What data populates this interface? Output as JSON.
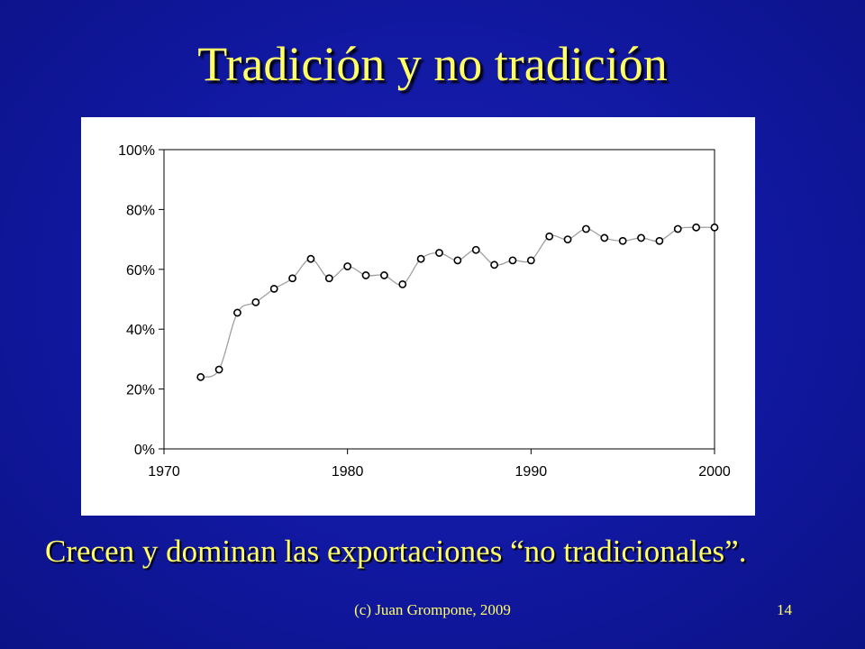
{
  "slide": {
    "title": "Tradición y no tradición",
    "caption": "Crecen y dominan las exportaciones “no tradicionales”.",
    "author": "(c) Juan Grompone, 2009",
    "page_number": "14"
  },
  "colors": {
    "background": "#1118a0",
    "text": "#ffff66",
    "line": "#a0a0a0",
    "marker": "#000000"
  },
  "chart_data": {
    "type": "line",
    "title": "",
    "xlabel": "",
    "ylabel": "",
    "xlim": [
      1970,
      2000
    ],
    "ylim": [
      0,
      100
    ],
    "grid": false,
    "legend": "none",
    "x_ticks": [
      1970,
      1980,
      1990,
      2000
    ],
    "x_tick_labels": [
      "1970",
      "1980",
      "1990",
      "2000"
    ],
    "y_ticks": [
      0,
      20,
      40,
      60,
      80,
      100
    ],
    "y_tick_labels": [
      "0%",
      "20%",
      "40%",
      "60%",
      "80%",
      "100%"
    ],
    "series": [
      {
        "x": [
          1972,
          1973,
          1974,
          1975,
          1976,
          1977,
          1978,
          1979,
          1980,
          1981,
          1982,
          1983,
          1984,
          1985,
          1986,
          1987,
          1988,
          1989,
          1990,
          1991,
          1992,
          1993,
          1994,
          1995,
          1996,
          1997,
          1998,
          1999,
          2000
        ],
        "values": [
          24,
          26.5,
          45.5,
          49,
          53.5,
          57,
          63.5,
          57,
          61,
          58,
          58,
          55,
          63.5,
          65.5,
          63,
          66.5,
          61.5,
          63,
          63,
          71,
          70,
          73.5,
          70.5,
          69.5,
          70.5,
          69.5,
          73.5,
          74,
          74
        ]
      }
    ]
  }
}
